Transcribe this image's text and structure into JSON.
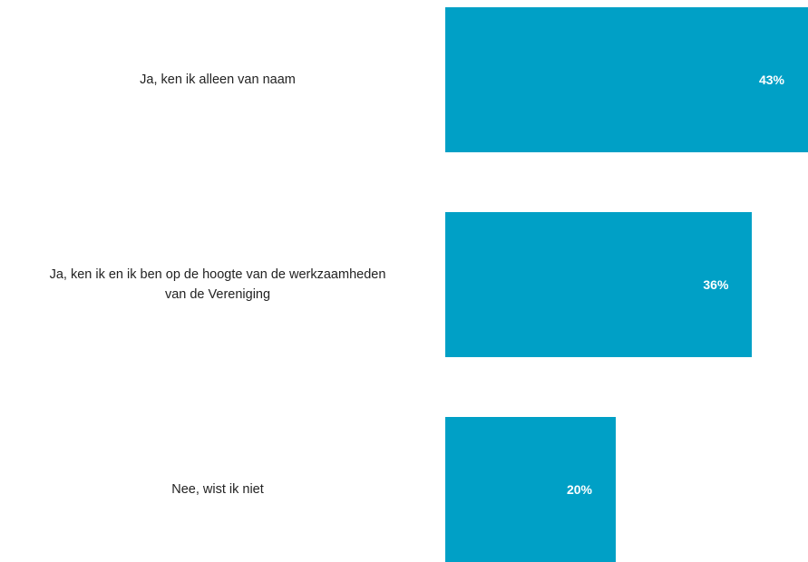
{
  "chart_data": {
    "type": "bar",
    "orientation": "horizontal",
    "categories": [
      "Ja, ken ik alleen van naam",
      "Ja, ken ik en ik ben op de hoogte van de werkzaamheden\nvan de Vereniging",
      "Nee, wist ik niet"
    ],
    "values": [
      43,
      36,
      20
    ],
    "value_labels": [
      "43%",
      "36%",
      "20%"
    ],
    "unit": "%",
    "title": "",
    "xlabel": "",
    "ylabel": "",
    "grid": false,
    "legend": "none",
    "bar_color": "#00A0C6",
    "label_color": "#FFFFFF"
  }
}
